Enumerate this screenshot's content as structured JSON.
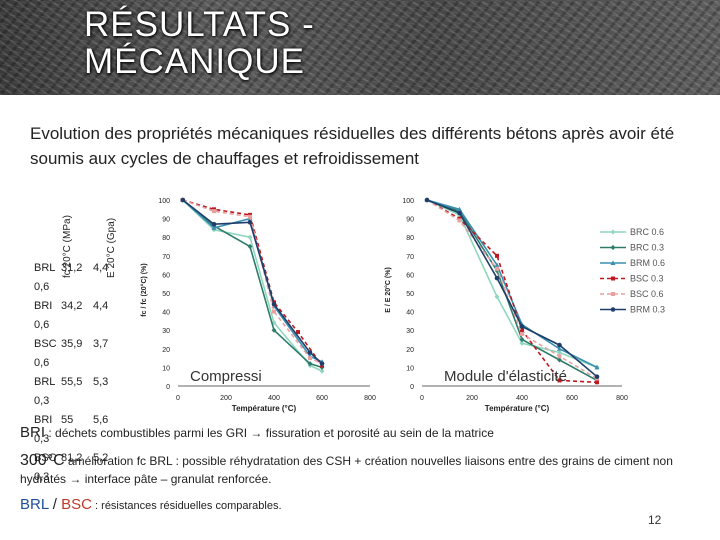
{
  "title_lines": [
    "RÉSULTATS -",
    "MÉCANIQUE"
  ],
  "subtitle": "Evolution des propriétés mécaniques résiduelles des différents bétons après avoir été soumis aux cycles de chauffages et refroidissement",
  "side_table": {
    "headers": [
      "fc 20°C (MPa)",
      "E 20°C (Gpa)"
    ],
    "rows": [
      {
        "name": "BRL",
        "fc": "31,2",
        "e": "4,4"
      },
      {
        "name": "0,6",
        "fc": "",
        "e": ""
      },
      {
        "name": "BRI",
        "fc": "34,2",
        "e": "4,4"
      },
      {
        "name": "0,6",
        "fc": "",
        "e": ""
      },
      {
        "name": "BSC",
        "fc": "35,9",
        "e": "3,7"
      },
      {
        "name": "0,6",
        "fc": "",
        "e": ""
      },
      {
        "name": "BRL",
        "fc": "55,5",
        "e": "5,3"
      },
      {
        "name": "0,3",
        "fc": "",
        "e": ""
      },
      {
        "name": "BRI",
        "fc": "55",
        "e": "5,6"
      },
      {
        "name": "0,3",
        "fc": "",
        "e": ""
      },
      {
        "name": "BSC",
        "fc": "81,2",
        "e": "5,2"
      },
      {
        "name": "0,3",
        "fc": "",
        "e": ""
      }
    ]
  },
  "notes": {
    "line1_lead": "BRI",
    "line1_text": " : déchets combustibles parmi les GRI → fissuration et porosité au sein de la matrice",
    "line2_lead": "300°C",
    "line2_text": " amélioration fc BRL : possible réhydratation des CSH + création nouvelles liaisons entre des grains de ciment non hydratés → interface pâte – granulat renforcée.",
    "line3_a": "BRL",
    "line3_sep": " / ",
    "line3_b": "BSC",
    "line3_text": " : résistances résiduelles comparables."
  },
  "page_number": "12",
  "chart_data": [
    {
      "type": "line",
      "title": "Compressi",
      "xlabel": "Température (°C)",
      "ylabel": "fc / fc (20°C) (%)",
      "xlim": [
        0,
        800
      ],
      "ylim": [
        0,
        100
      ],
      "xticks": [
        0,
        200,
        400,
        600,
        800
      ],
      "yticks": [
        0,
        10,
        20,
        30,
        40,
        50,
        60,
        70,
        80,
        90,
        100
      ],
      "grid": false,
      "series": [
        {
          "name": "BRC 0.6",
          "color": "#8fd6bf",
          "dash": "",
          "marker": "diamond",
          "x": [
            20,
            150,
            300,
            400,
            550,
            600
          ],
          "y": [
            100,
            84,
            80,
            34,
            11,
            8
          ]
        },
        {
          "name": "BRC 0.3",
          "color": "#2e7d6b",
          "dash": "",
          "marker": "diamond",
          "x": [
            20,
            150,
            300,
            400,
            550,
            600
          ],
          "y": [
            100,
            86,
            75,
            30,
            12,
            10
          ]
        },
        {
          "name": "BRM 0.6",
          "color": "#3a8fb0",
          "dash": "",
          "marker": "triangle",
          "x": [
            20,
            150,
            300,
            400,
            550,
            600
          ],
          "y": [
            100,
            85,
            90,
            43,
            16,
            13
          ]
        },
        {
          "name": "BSC 0.3",
          "color": "#c0181f",
          "dash": "4,3",
          "marker": "square",
          "x": [
            20,
            150,
            300,
            400,
            500,
            600
          ],
          "y": [
            100,
            95,
            92,
            45,
            29,
            11
          ]
        },
        {
          "name": "BSC 0.6",
          "color": "#e8a0a0",
          "dash": "4,3",
          "marker": "square",
          "x": [
            20,
            150,
            300,
            400,
            550,
            600
          ],
          "y": [
            100,
            94,
            91,
            40,
            15,
            12
          ]
        },
        {
          "name": "BRM 0.3",
          "color": "#1f3f6b",
          "dash": "",
          "marker": "circle",
          "x": [
            20,
            150,
            300,
            400,
            550,
            600
          ],
          "y": [
            100,
            87,
            88,
            44,
            18,
            12
          ]
        }
      ]
    },
    {
      "type": "line",
      "title": "Module d'élasticité",
      "xlabel": "Température (°C)",
      "ylabel": "E / E 20°C (%)",
      "xlim": [
        0,
        800
      ],
      "ylim": [
        0,
        100
      ],
      "xticks": [
        0,
        200,
        400,
        600,
        800
      ],
      "yticks": [
        0,
        10,
        20,
        30,
        40,
        50,
        60,
        70,
        80,
        90,
        100
      ],
      "grid": false,
      "legend": "right",
      "series": [
        {
          "name": "BRC 0.6",
          "color": "#8fd6bf",
          "dash": "",
          "marker": "diamond",
          "x": [
            20,
            150,
            300,
            400,
            550,
            700
          ],
          "y": [
            100,
            92,
            48,
            23,
            18,
            10
          ]
        },
        {
          "name": "BRC 0.3",
          "color": "#2e7d6b",
          "dash": "",
          "marker": "diamond",
          "x": [
            20,
            150,
            300,
            400,
            550,
            700
          ],
          "y": [
            100,
            94,
            62,
            25,
            14,
            3
          ]
        },
        {
          "name": "BRM 0.6",
          "color": "#3a8fb0",
          "dash": "",
          "marker": "triangle",
          "x": [
            20,
            150,
            300,
            400,
            550,
            700
          ],
          "y": [
            100,
            95,
            65,
            33,
            20,
            10
          ]
        },
        {
          "name": "BSC 0.3",
          "color": "#c0181f",
          "dash": "4,3",
          "marker": "square",
          "x": [
            20,
            150,
            300,
            400,
            550,
            700
          ],
          "y": [
            100,
            90,
            70,
            30,
            3,
            2
          ]
        },
        {
          "name": "BSC 0.6",
          "color": "#e8a0a0",
          "dash": "4,3",
          "marker": "square",
          "x": [
            20,
            150,
            300,
            400,
            550,
            700
          ],
          "y": [
            100,
            89,
            63,
            28,
            16,
            4
          ]
        },
        {
          "name": "BRM 0.3",
          "color": "#1f3f6b",
          "dash": "",
          "marker": "circle",
          "x": [
            20,
            150,
            300,
            400,
            550,
            700
          ],
          "y": [
            100,
            93,
            58,
            32,
            22,
            5
          ]
        }
      ]
    }
  ]
}
